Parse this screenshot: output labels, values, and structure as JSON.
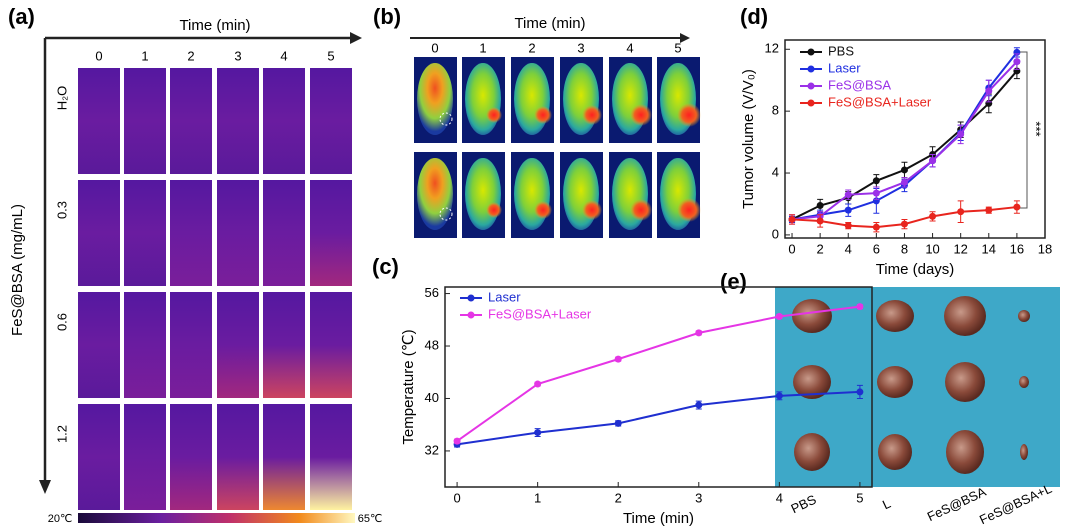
{
  "chart_data": [
    {
      "type": "line",
      "panel_label": "(d)",
      "xlabel": "Time (days)",
      "ylabel": "Tumor volume (V/V₀)",
      "x": [
        0,
        2,
        4,
        6,
        8,
        10,
        12,
        14,
        16
      ],
      "xlim": [
        -0.5,
        18
      ],
      "xticks": [
        0,
        2,
        4,
        6,
        8,
        10,
        12,
        14,
        16,
        18
      ],
      "ylim": [
        -0.2,
        12.6
      ],
      "yticks": [
        0,
        4,
        8,
        12
      ],
      "annotation": "***",
      "legend": "top-left",
      "series": [
        {
          "name": "PBS",
          "color": "#111111",
          "values": [
            1,
            1.9,
            2.4,
            3.5,
            4.2,
            5.2,
            6.8,
            8.5,
            10.6
          ],
          "errors": [
            0.2,
            0.4,
            0.4,
            0.4,
            0.5,
            0.5,
            0.5,
            0.6,
            0.5
          ]
        },
        {
          "name": "Laser",
          "color": "#1f2fe0",
          "values": [
            1,
            1.3,
            1.6,
            2.2,
            3.2,
            4.8,
            6.6,
            9.5,
            11.8
          ],
          "errors": [
            0.2,
            0.3,
            0.4,
            0.8,
            0.4,
            0.4,
            0.5,
            0.5,
            0.3
          ]
        },
        {
          "name": "FeS@BSA",
          "color": "#9b30e8",
          "values": [
            1,
            1.2,
            2.6,
            2.7,
            3.4,
            4.8,
            6.5,
            9.3,
            11.2
          ],
          "errors": [
            0.3,
            0.3,
            0.3,
            0.4,
            0.3,
            0.4,
            0.6,
            0.7,
            0.5
          ]
        },
        {
          "name": "FeS@BSA+Laser",
          "color": "#e8251e",
          "values": [
            1,
            0.9,
            0.6,
            0.5,
            0.7,
            1.2,
            1.5,
            1.6,
            1.8
          ],
          "errors": [
            0.3,
            0.4,
            0.2,
            0.3,
            0.3,
            0.3,
            0.7,
            0.2,
            0.4
          ]
        }
      ]
    },
    {
      "type": "line",
      "panel_label": "(c)",
      "xlabel": "Time (min)",
      "ylabel": "Temperature (℃)",
      "x": [
        0,
        1,
        2,
        3,
        4,
        5
      ],
      "xlim": [
        -0.15,
        5.15
      ],
      "xticks": [
        0,
        1,
        2,
        3,
        4,
        5
      ],
      "ylim": [
        26.5,
        57
      ],
      "yticks": [
        32,
        40,
        48,
        56
      ],
      "legend": "top-left",
      "series": [
        {
          "name": "Laser",
          "color": "#1f2fd0",
          "values": [
            33,
            34.8,
            36.2,
            39,
            40.4,
            41
          ],
          "errors": [
            0.4,
            0.6,
            0.4,
            0.6,
            0.6,
            1.0
          ]
        },
        {
          "name": "FeS@BSA+Laser",
          "color": "#e535e5",
          "values": [
            33.5,
            42.2,
            46,
            50,
            52.5,
            54
          ],
          "errors": [
            0.3,
            0.3,
            0.3,
            0.3,
            0.3,
            0.3
          ]
        }
      ]
    }
  ],
  "panel_a": {
    "label": "(a)",
    "axis_title": "Time (min)",
    "columns": [
      "0",
      "1",
      "2",
      "3",
      "4",
      "5"
    ],
    "rows": [
      "H₂O",
      "0.3",
      "0.6",
      "1.2"
    ],
    "row_title": "FeS@BSA (mg/mL)",
    "scale_min": "20℃",
    "scale_max": "65℃"
  },
  "panel_b": {
    "label": "(b)",
    "axis_title": "Time (min)",
    "columns": [
      "0",
      "1",
      "2",
      "3",
      "4",
      "5"
    ]
  },
  "panel_e": {
    "label": "(e)",
    "groups": [
      "PBS",
      "L",
      "FeS@BSA",
      "FeS@BSA+L"
    ]
  }
}
